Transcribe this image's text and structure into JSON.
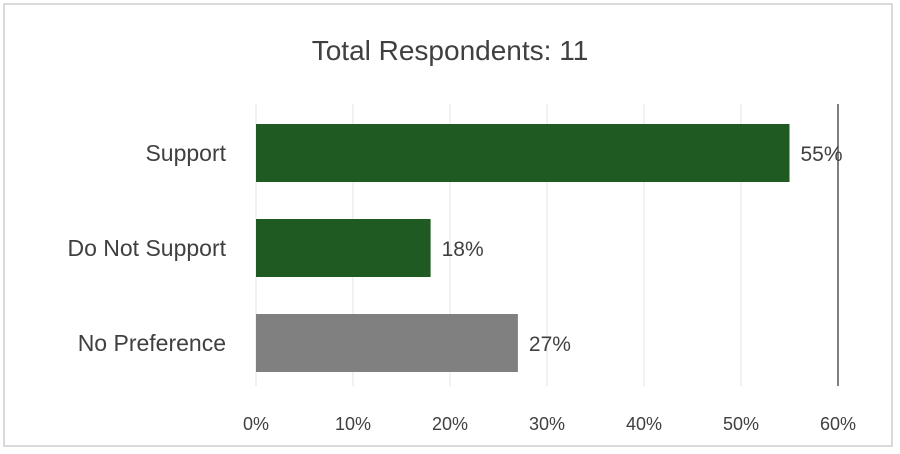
{
  "chart_data": {
    "type": "bar",
    "orientation": "horizontal",
    "title": "Total Respondents: 11",
    "categories": [
      "Support",
      "Do Not Support",
      "No Preference"
    ],
    "values": [
      55,
      18,
      27
    ],
    "value_labels": [
      "55%",
      "18%",
      "27%"
    ],
    "bar_colors": [
      "#1e5a22",
      "#1e5a22",
      "#808080"
    ],
    "xlim": [
      0,
      60
    ],
    "x_ticks": [
      0,
      10,
      20,
      30,
      40,
      50,
      60
    ],
    "x_tick_labels": [
      "0%",
      "10%",
      "20%",
      "30%",
      "40%",
      "50%",
      "60%"
    ],
    "xlabel": "",
    "ylabel": "",
    "grid": true
  }
}
